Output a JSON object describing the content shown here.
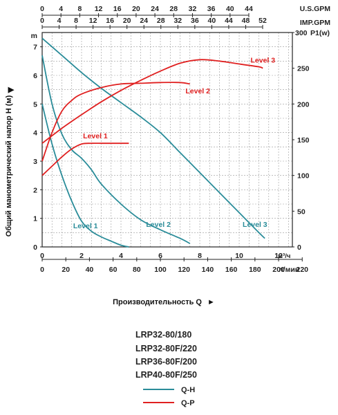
{
  "chart_data": {
    "type": "line",
    "top_axis_usgpm": {
      "ticks": [
        "0",
        "4",
        "8",
        "12",
        "16",
        "20",
        "24",
        "28",
        "32",
        "36",
        "40",
        "44"
      ],
      "unit": "U.S.GPM"
    },
    "top_axis_impgpm": {
      "ticks": [
        "0",
        "4",
        "8",
        "12",
        "16",
        "20",
        "24",
        "28",
        "32",
        "36",
        "40",
        "44",
        "48",
        "52"
      ],
      "unit": "IMP.GPM"
    },
    "x_m3h": {
      "ticks": [
        "0",
        "2",
        "4",
        "6",
        "8",
        "10",
        "12"
      ],
      "unit": "м³/ч",
      "range": [
        0,
        12.7
      ]
    },
    "x_lmin": {
      "ticks": [
        "0",
        "20",
        "40",
        "60",
        "80",
        "100",
        "120",
        "140",
        "160",
        "180",
        "200",
        "220"
      ],
      "unit": "л/мин"
    },
    "y_head": {
      "ticks": [
        "0",
        "1",
        "2",
        "3",
        "4",
        "5",
        "6",
        "7"
      ],
      "unit": "m",
      "range": [
        0,
        7.5
      ]
    },
    "y_power": {
      "ticks": [
        "0",
        "50",
        "100",
        "150",
        "200",
        "250",
        "300"
      ],
      "unit": "P1(w)",
      "range": [
        0,
        300
      ]
    },
    "ylabel": "Общий манометрический напор H (м)",
    "xlabel": "Производительность Q",
    "series": [
      {
        "name": "Level 1",
        "kind": "Q-H",
        "color": "#2a8c99",
        "label_at": [
          2.2,
          0.65
        ],
        "points": [
          [
            0,
            5.0
          ],
          [
            0.5,
            3.6
          ],
          [
            1,
            2.5
          ],
          [
            1.5,
            1.6
          ],
          [
            2,
            0.9
          ],
          [
            2.5,
            0.55
          ],
          [
            3,
            0.35
          ],
          [
            3.5,
            0.2
          ],
          [
            4,
            0.06
          ],
          [
            4.4,
            0.0
          ]
        ]
      },
      {
        "name": "Level 2",
        "kind": "Q-H",
        "color": "#2a8c99",
        "label_at": [
          5.9,
          0.7
        ],
        "points": [
          [
            0,
            6.7
          ],
          [
            0.5,
            5.0
          ],
          [
            1,
            3.95
          ],
          [
            1.5,
            3.4
          ],
          [
            2,
            3.1
          ],
          [
            2.5,
            2.7
          ],
          [
            3,
            2.2
          ],
          [
            4,
            1.5
          ],
          [
            5,
            0.95
          ],
          [
            6,
            0.6
          ],
          [
            7,
            0.3
          ],
          [
            7.5,
            0.12
          ]
        ]
      },
      {
        "name": "Level 3",
        "kind": "Q-H",
        "color": "#2a8c99",
        "label_at": [
          10.8,
          0.7
        ],
        "points": [
          [
            0,
            7.3
          ],
          [
            1,
            6.7
          ],
          [
            2,
            6.1
          ],
          [
            3,
            5.55
          ],
          [
            4,
            5.05
          ],
          [
            5,
            4.55
          ],
          [
            6,
            4.0
          ],
          [
            7,
            3.3
          ],
          [
            8,
            2.6
          ],
          [
            9,
            1.9
          ],
          [
            10,
            1.2
          ],
          [
            11,
            0.5
          ],
          [
            11.3,
            0.3
          ]
        ]
      },
      {
        "name": "Level 1",
        "kind": "Q-P",
        "color": "#e02020",
        "label_at": [
          2.7,
          152
        ],
        "points": [
          [
            0,
            100
          ],
          [
            0.5,
            113
          ],
          [
            1,
            126
          ],
          [
            1.5,
            137
          ],
          [
            2,
            144
          ],
          [
            2.5,
            145
          ],
          [
            3,
            145
          ],
          [
            3.5,
            145
          ],
          [
            4,
            145
          ],
          [
            4.4,
            145
          ]
        ]
      },
      {
        "name": "Level 2",
        "kind": "Q-P",
        "color": "#e02020",
        "label_at": [
          7.9,
          215
        ],
        "points": [
          [
            0,
            120
          ],
          [
            0.5,
            160
          ],
          [
            1,
            190
          ],
          [
            1.5,
            205
          ],
          [
            2,
            214
          ],
          [
            3,
            223
          ],
          [
            4,
            228
          ],
          [
            5,
            229
          ],
          [
            6,
            230
          ],
          [
            7,
            230
          ],
          [
            7.5,
            228
          ]
        ]
      },
      {
        "name": "Level 3",
        "kind": "Q-P",
        "color": "#e02020",
        "label_at": [
          11.2,
          258
        ],
        "points": [
          [
            0,
            145
          ],
          [
            1,
            166
          ],
          [
            2,
            185
          ],
          [
            3,
            203
          ],
          [
            4,
            219
          ],
          [
            5,
            233
          ],
          [
            6,
            246
          ],
          [
            7,
            257
          ],
          [
            8,
            262
          ],
          [
            9,
            260
          ],
          [
            10,
            256
          ],
          [
            11,
            252
          ],
          [
            11.2,
            250
          ]
        ]
      }
    ]
  },
  "models": [
    "LRP32-80/180",
    "LRP32-80F/220",
    "LRP36-80F/200",
    "LRP40-80F/250"
  ],
  "legend": {
    "qh": "Q-H",
    "qp": "Q-P"
  }
}
